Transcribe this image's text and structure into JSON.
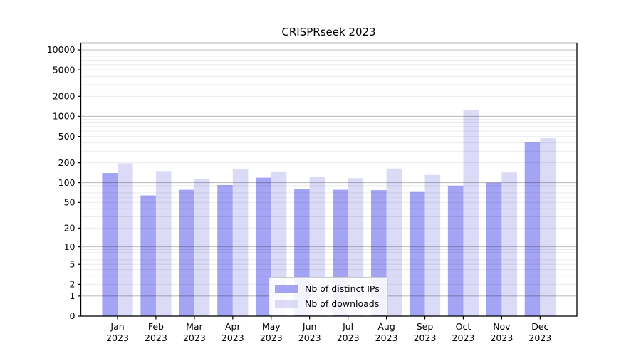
{
  "chart_data": {
    "type": "bar",
    "title": "CRISPRseek 2023",
    "categories": [
      "Jan 2023",
      "Feb 2023",
      "Mar 2023",
      "Apr 2023",
      "May 2023",
      "Jun 2023",
      "Jul 2023",
      "Aug 2023",
      "Sep 2023",
      "Oct 2023",
      "Nov 2023",
      "Dec 2023"
    ],
    "series": [
      {
        "name": "Nb of distinct IPs",
        "color": "#a4a4f4",
        "values": [
          140,
          64,
          78,
          92,
          119,
          81,
          78,
          77,
          74,
          90,
          100,
          405
        ]
      },
      {
        "name": "Nb of downloads",
        "color": "#dbdbf8",
        "values": [
          196,
          150,
          113,
          163,
          148,
          121,
          117,
          164,
          131,
          1230,
          143,
          470
        ]
      }
    ],
    "xlabel": "",
    "ylabel": "",
    "yscale": "log1p",
    "ylim": [
      0,
      12600
    ],
    "yticks": [
      10000,
      5000,
      2000,
      1000,
      500,
      200,
      100,
      50,
      20,
      10,
      5,
      2,
      1,
      0
    ],
    "grid": true,
    "legend_position": "lower center"
  },
  "colors": {
    "bar_distinct_ips": "#a4a4f4",
    "bar_downloads": "#dbdbf8",
    "grid_major": "rgba(0,0,0,0.25)",
    "grid_minor": "rgba(0,0,0,0.08)",
    "frame": "#000000",
    "background": "#ffffff"
  }
}
